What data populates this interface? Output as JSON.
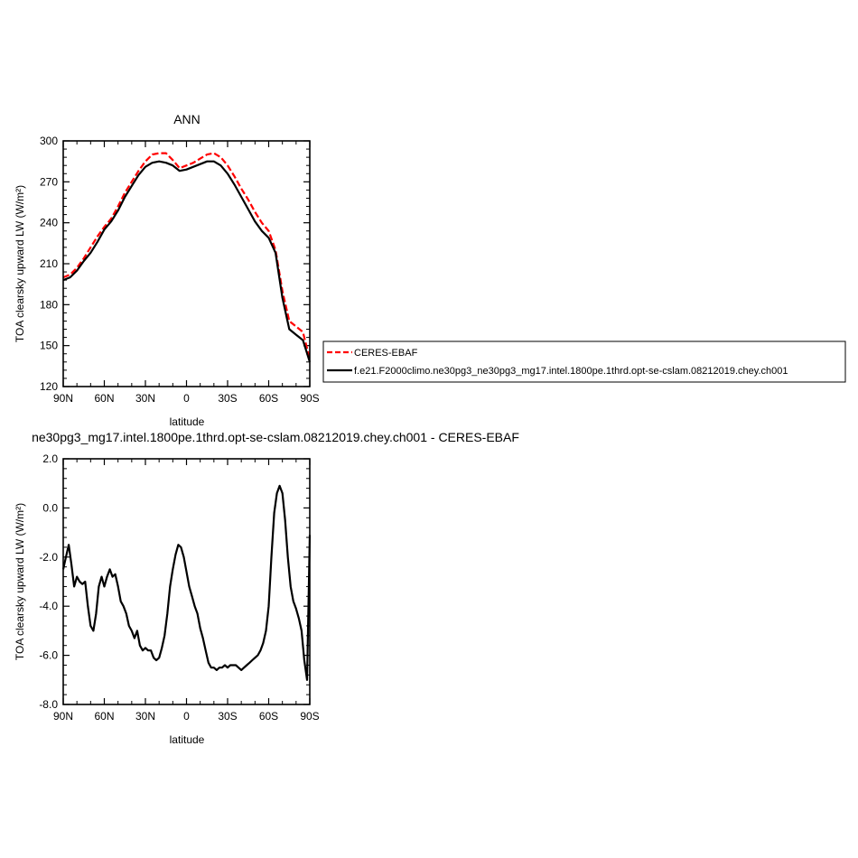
{
  "chart_data": [
    {
      "type": "line",
      "title": "ANN",
      "xlabel": "latitude",
      "ylabel": "TOA clearsky upward LW (W/m²)",
      "xlim": [
        90,
        -90
      ],
      "ylim": [
        120,
        300
      ],
      "yticks": [
        120,
        150,
        180,
        210,
        240,
        270,
        300
      ],
      "ytick_labels": [
        "120",
        "150",
        "180",
        "210",
        "240",
        "270",
        "300"
      ],
      "xticks": [
        90,
        60,
        30,
        0,
        -30,
        -60,
        -90
      ],
      "xtick_labels": [
        "90N",
        "60N",
        "30N",
        "0",
        "30S",
        "60S",
        "90S"
      ],
      "legend_position": "right",
      "series": [
        {
          "name": "CERES-EBAF",
          "color": "#ff0000",
          "style": "dashed",
          "x": [
            90,
            85,
            80,
            75,
            70,
            65,
            60,
            55,
            50,
            45,
            40,
            35,
            30,
            25,
            20,
            15,
            10,
            5,
            0,
            -5,
            -10,
            -15,
            -20,
            -25,
            -30,
            -35,
            -40,
            -45,
            -50,
            -55,
            -60,
            -65,
            -70,
            -75,
            -80,
            -85,
            -90
          ],
          "values": [
            200,
            202,
            207,
            214,
            222,
            230,
            237,
            243,
            252,
            262,
            270,
            278,
            285,
            290,
            291,
            291,
            286,
            280,
            282,
            284,
            287,
            290,
            291,
            288,
            282,
            274,
            265,
            257,
            248,
            240,
            234,
            220,
            190,
            168,
            164,
            160,
            140
          ]
        },
        {
          "name": "f.e21.F2000climo.ne30pg3_ne30pg3_mg17.intel.1800pe.1thrd.opt-se-cslam.08212019.chey.ch001",
          "color": "#000000",
          "style": "solid",
          "x": [
            90,
            85,
            80,
            75,
            70,
            65,
            60,
            55,
            50,
            45,
            40,
            35,
            30,
            25,
            20,
            15,
            10,
            5,
            0,
            -5,
            -10,
            -15,
            -20,
            -25,
            -30,
            -35,
            -40,
            -45,
            -50,
            -55,
            -60,
            -65,
            -70,
            -75,
            -80,
            -85,
            -90
          ],
          "values": [
            198,
            200,
            205,
            212,
            218,
            226,
            235,
            241,
            249,
            259,
            267,
            275,
            281,
            284,
            285,
            284,
            282,
            278,
            279,
            281,
            283,
            285,
            285,
            282,
            276,
            268,
            259,
            250,
            241,
            234,
            229,
            218,
            185,
            162,
            158,
            154,
            138
          ]
        }
      ]
    },
    {
      "type": "line",
      "title": "ne30pg3_mg17.intel.1800pe.1thrd.opt-se-cslam.08212019.chey.ch001 - CERES-EBAF",
      "xlabel": "latitude",
      "ylabel": "TOA clearsky upward LW (W/m²)",
      "xlim": [
        90,
        -90
      ],
      "ylim": [
        -8,
        2
      ],
      "yticks": [
        -8,
        -6,
        -4,
        -2,
        0,
        2
      ],
      "ytick_labels": [
        "-8.0",
        "-6.0",
        "-4.0",
        "-2.0",
        "0.0",
        "2.0"
      ],
      "xticks": [
        90,
        60,
        30,
        0,
        -30,
        -60,
        -90
      ],
      "xtick_labels": [
        "90N",
        "60N",
        "30N",
        "0",
        "30S",
        "60S",
        "90S"
      ],
      "series": [
        {
          "color": "#000000",
          "style": "solid",
          "x": [
            90,
            88,
            86,
            84,
            82,
            80,
            78,
            76,
            74,
            72,
            70,
            68,
            66,
            64,
            62,
            60,
            58,
            56,
            54,
            52,
            50,
            48,
            46,
            44,
            42,
            40,
            38,
            36,
            34,
            32,
            30,
            28,
            26,
            24,
            22,
            20,
            18,
            16,
            14,
            12,
            10,
            8,
            6,
            4,
            2,
            0,
            -2,
            -4,
            -6,
            -8,
            -10,
            -12,
            -14,
            -16,
            -18,
            -20,
            -22,
            -24,
            -26,
            -28,
            -30,
            -32,
            -34,
            -36,
            -38,
            -40,
            -42,
            -44,
            -46,
            -48,
            -50,
            -52,
            -54,
            -56,
            -58,
            -60,
            -62,
            -64,
            -66,
            -68,
            -70,
            -72,
            -74,
            -76,
            -78,
            -80,
            -82,
            -84,
            -86,
            -88,
            -90
          ],
          "values": [
            -2.5,
            -2.0,
            -1.5,
            -2.3,
            -3.2,
            -2.8,
            -3.0,
            -3.1,
            -3.0,
            -4.0,
            -4.8,
            -5.0,
            -4.3,
            -3.2,
            -2.8,
            -3.2,
            -2.8,
            -2.5,
            -2.8,
            -2.7,
            -3.2,
            -3.8,
            -4.0,
            -4.3,
            -4.8,
            -5.0,
            -5.3,
            -5.0,
            -5.6,
            -5.8,
            -5.7,
            -5.8,
            -5.8,
            -6.1,
            -6.2,
            -6.1,
            -5.7,
            -5.2,
            -4.3,
            -3.2,
            -2.5,
            -1.9,
            -1.5,
            -1.6,
            -2.0,
            -2.6,
            -3.2,
            -3.6,
            -4.0,
            -4.3,
            -4.9,
            -5.3,
            -5.8,
            -6.3,
            -6.5,
            -6.5,
            -6.6,
            -6.5,
            -6.5,
            -6.4,
            -6.5,
            -6.4,
            -6.4,
            -6.4,
            -6.5,
            -6.6,
            -6.5,
            -6.4,
            -6.3,
            -6.2,
            -6.1,
            -6.0,
            -5.8,
            -5.5,
            -5.0,
            -4.0,
            -2.0,
            -0.2,
            0.6,
            0.9,
            0.6,
            -0.5,
            -2.0,
            -3.2,
            -3.8,
            -4.1,
            -4.5,
            -5.0,
            -6.2,
            -7.0,
            -1.1
          ]
        }
      ]
    }
  ]
}
